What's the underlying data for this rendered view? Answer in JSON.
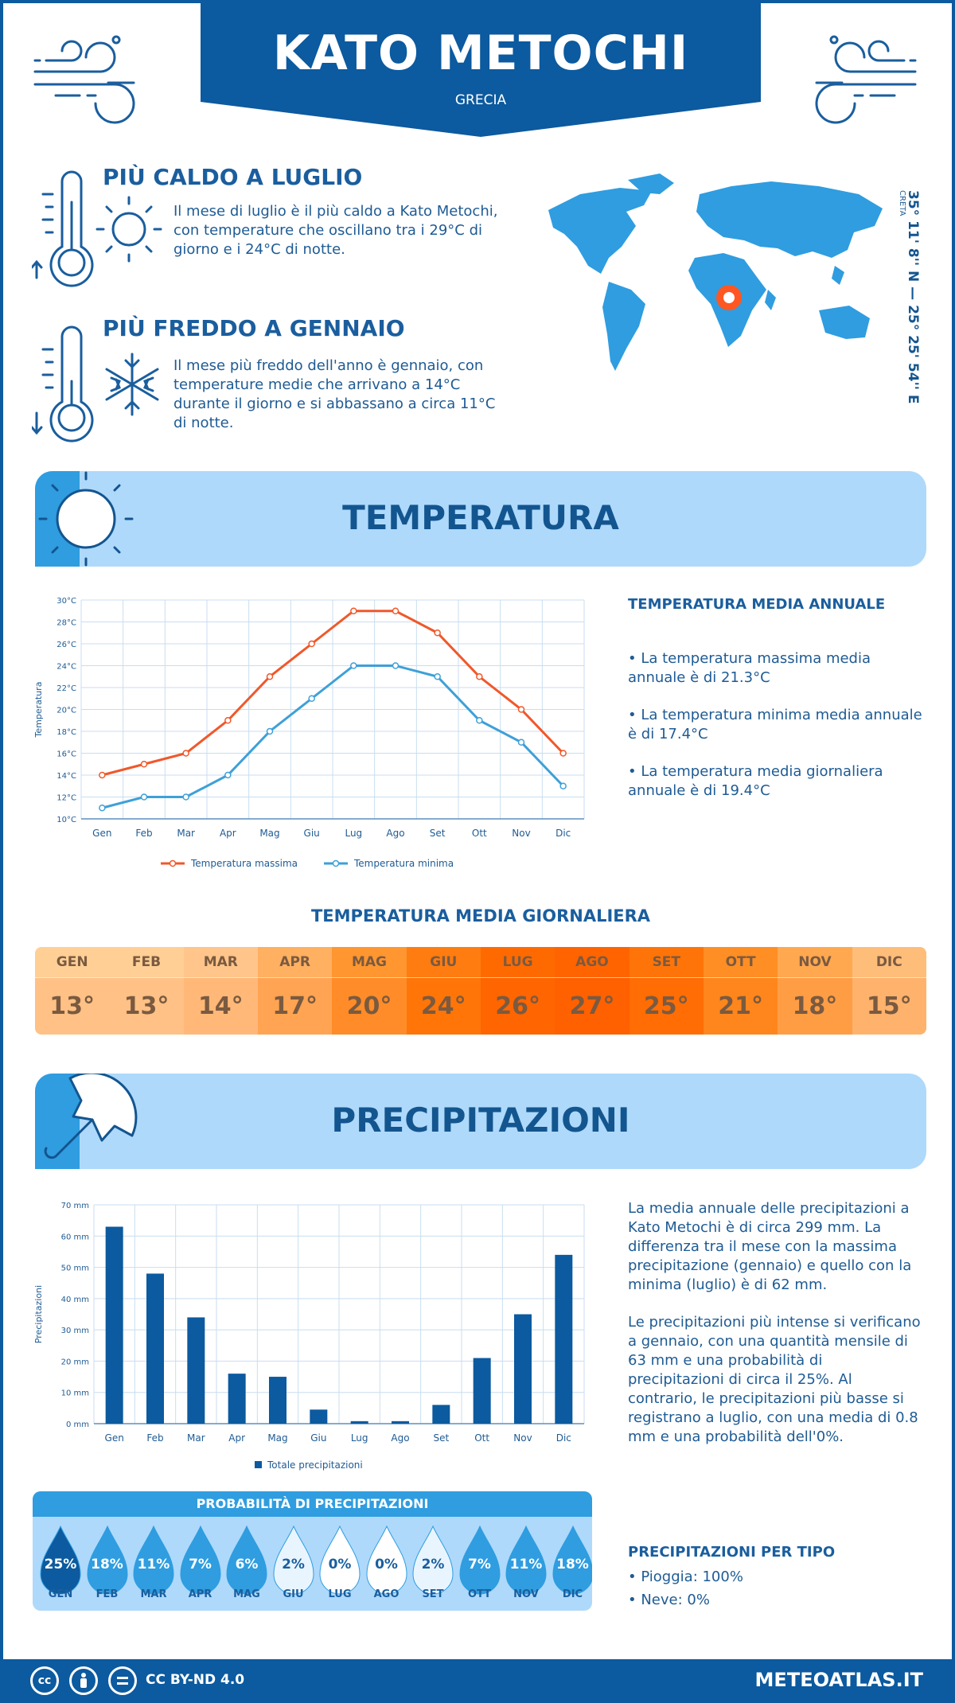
{
  "header": {
    "title": "KATO METOCHI",
    "country": "GRECIA"
  },
  "coords": {
    "text": "35° 11' 8'' N — 25° 25' 54'' E",
    "region": "CRETA"
  },
  "facts": {
    "hot": {
      "title": "PIÙ CALDO A LUGLIO",
      "text": "Il mese di luglio è il più caldo a Kato Metochi, con temperature che oscillano tra i 29°C di giorno e i 24°C di notte."
    },
    "cold": {
      "title": "PIÙ FREDDO A GENNAIO",
      "text": "Il mese più freddo dell'anno è gennaio, con temperature medie che arrivano a 14°C durante il giorno e si abbassano a circa 11°C di notte."
    }
  },
  "temperature": {
    "banner": "TEMPERATURA",
    "annual_title": "TEMPERATURA MEDIA ANNUALE",
    "bullets": [
      "• La temperatura massima media annuale è di 21.3°C",
      "• La temperatura minima media annuale è di 17.4°C",
      "• La temperatura media giornaliera annuale è di 19.4°C"
    ],
    "daily_title": "TEMPERATURA MEDIA GIORNALIERA",
    "daily": [
      {
        "m": "GEN",
        "v": "13°",
        "c1": "#ffcf96",
        "c2": "#ffc185"
      },
      {
        "m": "FEB",
        "v": "13°",
        "c1": "#ffcf96",
        "c2": "#ffc185"
      },
      {
        "m": "MAR",
        "v": "14°",
        "c1": "#ffc58a",
        "c2": "#ffb878"
      },
      {
        "m": "APR",
        "v": "17°",
        "c1": "#ffb060",
        "c2": "#ffa452"
      },
      {
        "m": "MAG",
        "v": "20°",
        "c1": "#ff9630",
        "c2": "#ff8c28"
      },
      {
        "m": "GIU",
        "v": "24°",
        "c1": "#ff7c10",
        "c2": "#ff7508"
      },
      {
        "m": "LUG",
        "v": "26°",
        "c1": "#ff6a00",
        "c2": "#ff6500"
      },
      {
        "m": "AGO",
        "v": "27°",
        "c1": "#ff6400",
        "c2": "#ff6000"
      },
      {
        "m": "SET",
        "v": "25°",
        "c1": "#ff7408",
        "c2": "#ff6d04"
      },
      {
        "m": "OTT",
        "v": "21°",
        "c1": "#ff8e24",
        "c2": "#ff861c"
      },
      {
        "m": "NOV",
        "v": "18°",
        "c1": "#ffa850",
        "c2": "#ff9d44"
      },
      {
        "m": "DIC",
        "v": "15°",
        "c1": "#ffbd7a",
        "c2": "#ffb26c"
      }
    ]
  },
  "precip": {
    "banner": "PRECIPITAZIONI",
    "text1": "La media annuale delle precipitazioni a Kato Metochi è di circa 299 mm. La differenza tra il mese con la massima precipitazione (gennaio) e quello con la minima (luglio) è di 62 mm.",
    "text2": "Le precipitazioni più intense si verificano a gennaio, con una quantità mensile di 63 mm e una probabilità di precipitazioni di circa il 25%. Al contrario, le precipitazioni più basse si registrano a luglio, con una media di 0.8 mm e una probabilità dell'0%.",
    "prob_title": "PROBABILITÀ DI PRECIPITAZIONI",
    "prob": [
      {
        "m": "GEN",
        "v": "25%",
        "fill": "#0c5a9f",
        "tc": "#ffffff"
      },
      {
        "m": "FEB",
        "v": "18%",
        "fill": "#2f9de0",
        "tc": "#ffffff"
      },
      {
        "m": "MAR",
        "v": "11%",
        "fill": "#2f9de0",
        "tc": "#ffffff"
      },
      {
        "m": "APR",
        "v": "7%",
        "fill": "#2f9de0",
        "tc": "#ffffff"
      },
      {
        "m": "MAG",
        "v": "6%",
        "fill": "#2f9de0",
        "tc": "#ffffff"
      },
      {
        "m": "GIU",
        "v": "2%",
        "fill": "#e9f5fe",
        "tc": "#1a5e9e"
      },
      {
        "m": "LUG",
        "v": "0%",
        "fill": "#ffffff",
        "tc": "#1a5e9e"
      },
      {
        "m": "AGO",
        "v": "0%",
        "fill": "#ffffff",
        "tc": "#1a5e9e"
      },
      {
        "m": "SET",
        "v": "2%",
        "fill": "#e9f5fe",
        "tc": "#1a5e9e"
      },
      {
        "m": "OTT",
        "v": "7%",
        "fill": "#2f9de0",
        "tc": "#ffffff"
      },
      {
        "m": "NOV",
        "v": "11%",
        "fill": "#2f9de0",
        "tc": "#ffffff"
      },
      {
        "m": "DIC",
        "v": "18%",
        "fill": "#2f9de0",
        "tc": "#ffffff"
      }
    ],
    "type_title": "PRECIPITAZIONI PER TIPO",
    "types": [
      "• Pioggia: 100%",
      "• Neve: 0%"
    ]
  },
  "footer": {
    "license": "CC BY-ND 4.0",
    "site": "METEOATLAS.IT"
  },
  "colors": {
    "brand": "#0c5a9f",
    "light": "#aed9fb",
    "max_line": "#f0582a",
    "min_line": "#3ea0d8"
  },
  "chart_data": [
    {
      "type": "line",
      "categories": [
        "Gen",
        "Feb",
        "Mar",
        "Apr",
        "Mag",
        "Giu",
        "Lug",
        "Ago",
        "Set",
        "Ott",
        "Nov",
        "Dic"
      ],
      "series": [
        {
          "name": "Temperatura massima",
          "values": [
            14,
            15,
            16,
            19,
            23,
            26,
            29,
            29,
            27,
            23,
            20,
            16
          ]
        },
        {
          "name": "Temperatura minima",
          "values": [
            11,
            12,
            12,
            14,
            18,
            21,
            24,
            24,
            23,
            19,
            17,
            13
          ]
        }
      ],
      "ylabel": "Temperatura",
      "ylim": [
        10,
        30
      ],
      "yticks": [
        "10°C",
        "12°C",
        "14°C",
        "16°C",
        "18°C",
        "20°C",
        "22°C",
        "24°C",
        "26°C",
        "28°C",
        "30°C"
      ],
      "grid": true,
      "legend": "bottom"
    },
    {
      "type": "bar",
      "categories": [
        "Gen",
        "Feb",
        "Mar",
        "Apr",
        "Mag",
        "Giu",
        "Lug",
        "Ago",
        "Set",
        "Ott",
        "Nov",
        "Dic"
      ],
      "series": [
        {
          "name": "Totale precipitazioni",
          "values": [
            63,
            48,
            34,
            16,
            15,
            4.5,
            0.8,
            0.8,
            6,
            21,
            35,
            54
          ]
        }
      ],
      "ylabel": "Precipitazioni",
      "ylim": [
        0,
        70
      ],
      "yticks": [
        "0 mm",
        "10 mm",
        "20 mm",
        "30 mm",
        "40 mm",
        "50 mm",
        "60 mm",
        "70 mm"
      ],
      "grid": true,
      "legend": "bottom"
    }
  ]
}
